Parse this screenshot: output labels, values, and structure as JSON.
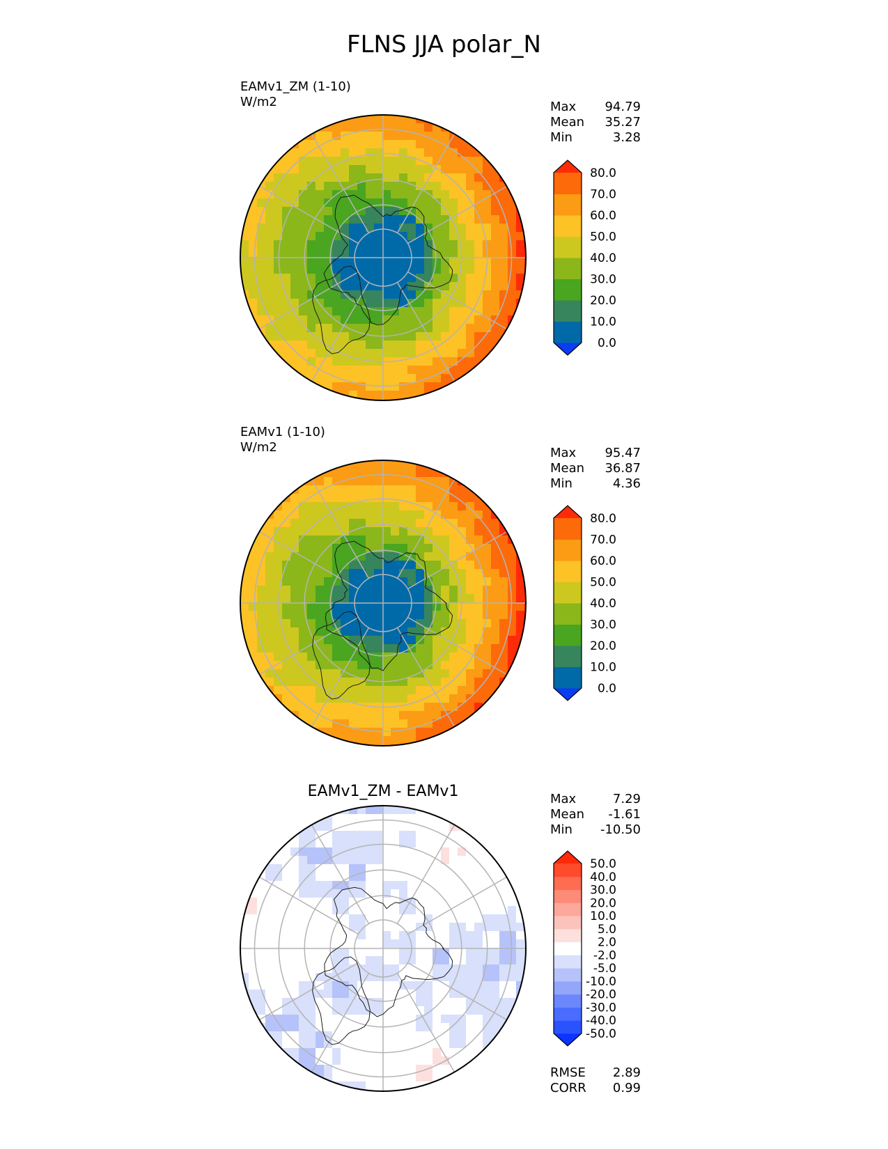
{
  "title": "FLNS JJA polar_N",
  "panels": [
    {
      "id": "test",
      "label": "EAMv1_ZM (1-10)",
      "units": "W/m2",
      "stats": [
        {
          "label": "Max",
          "value": "94.79"
        },
        {
          "label": "Mean",
          "value": "35.27"
        },
        {
          "label": "Min",
          "value": "3.28"
        }
      ]
    },
    {
      "id": "ref",
      "label": "EAMv1 (1-10)",
      "units": "W/m2",
      "stats": [
        {
          "label": "Max",
          "value": "95.47"
        },
        {
          "label": "Mean",
          "value": "36.87"
        },
        {
          "label": "Min",
          "value": "4.36"
        }
      ]
    },
    {
      "id": "diff",
      "label": "EAMv1_ZM - EAMv1",
      "stats": [
        {
          "label": "Max",
          "value": "7.29"
        },
        {
          "label": "Mean",
          "value": "-1.61"
        },
        {
          "label": "Min",
          "value": "-10.50"
        }
      ],
      "metrics": [
        {
          "label": "RMSE",
          "value": "2.89"
        },
        {
          "label": "CORR",
          "value": "0.99"
        }
      ]
    }
  ],
  "chart_data": [
    {
      "type": "heatmap",
      "projection": "north-polar-stereographic",
      "title": "EAMv1_ZM (1-10)",
      "units": "W/m2",
      "levels": [
        "0.0",
        "10.0",
        "20.0",
        "30.0",
        "40.0",
        "50.0",
        "60.0",
        "70.0",
        "80.0"
      ],
      "colorbar_colors": [
        "#0a3cf2",
        "#006aa8",
        "#36855d",
        "#4aa520",
        "#8bb71a",
        "#cdc81f",
        "#fcc226",
        "#fb9c14",
        "#fd6a0a",
        "#ff2b08"
      ],
      "summary": {
        "max": 94.79,
        "mean": 35.27,
        "min": 3.28
      }
    },
    {
      "type": "heatmap",
      "projection": "north-polar-stereographic",
      "title": "EAMv1 (1-10)",
      "units": "W/m2",
      "levels": [
        "0.0",
        "10.0",
        "20.0",
        "30.0",
        "40.0",
        "50.0",
        "60.0",
        "70.0",
        "80.0"
      ],
      "colorbar_colors": [
        "#0a3cf2",
        "#006aa8",
        "#36855d",
        "#4aa520",
        "#8bb71a",
        "#cdc81f",
        "#fcc226",
        "#fb9c14",
        "#fd6a0a",
        "#ff2b08"
      ],
      "summary": {
        "max": 95.47,
        "mean": 36.87,
        "min": 4.36
      }
    },
    {
      "type": "heatmap",
      "projection": "north-polar-stereographic",
      "title": "EAMv1_ZM - EAMv1",
      "levels": [
        "-50.0",
        "-40.0",
        "-30.0",
        "-20.0",
        "-10.0",
        "-5.0",
        "-2.0",
        "2.0",
        "5.0",
        "10.0",
        "20.0",
        "30.0",
        "40.0",
        "50.0"
      ],
      "colorbar_colors": [
        "#0a34ff",
        "#2a52ff",
        "#4a6cff",
        "#6c87fc",
        "#93a6fa",
        "#b6c3fa",
        "#d8e0fb",
        "#ffffff",
        "#fde0de",
        "#fcc3bc",
        "#fca89a",
        "#fd8b78",
        "#fe6c52",
        "#ff4a2c",
        "#ff2a0a"
      ],
      "summary": {
        "max": 7.29,
        "mean": -1.61,
        "min": -10.5,
        "rmse": 2.89,
        "corr": 0.99
      }
    }
  ]
}
